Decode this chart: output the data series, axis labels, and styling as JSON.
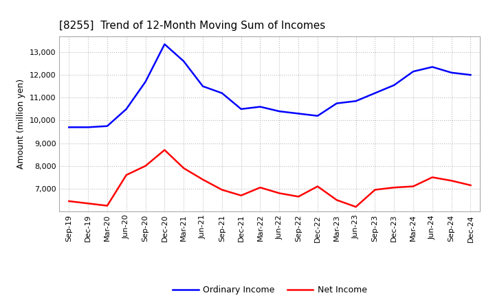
{
  "title": "[8255]  Trend of 12-Month Moving Sum of Incomes",
  "ylabel": "Amount (million yen)",
  "ylim": [
    6000,
    13700
  ],
  "yticks": [
    7000,
    8000,
    9000,
    10000,
    11000,
    12000,
    13000
  ],
  "background_color": "#ffffff",
  "grid_color": "#bbbbbb",
  "x_labels": [
    "Sep-19",
    "Dec-19",
    "Mar-20",
    "Jun-20",
    "Sep-20",
    "Dec-20",
    "Mar-21",
    "Jun-21",
    "Sep-21",
    "Dec-21",
    "Mar-22",
    "Jun-22",
    "Sep-22",
    "Dec-22",
    "Mar-23",
    "Jun-23",
    "Sep-23",
    "Dec-23",
    "Mar-24",
    "Jun-24",
    "Sep-24",
    "Dec-24"
  ],
  "ordinary_income": [
    9700,
    9700,
    9750,
    10500,
    11700,
    13350,
    12600,
    11500,
    11200,
    10500,
    10600,
    10400,
    10300,
    10200,
    10750,
    10850,
    11200,
    11550,
    12150,
    12350,
    12100,
    12000
  ],
  "net_income": [
    6450,
    6350,
    6250,
    7600,
    8000,
    8700,
    7900,
    7400,
    6950,
    6700,
    7050,
    6800,
    6650,
    7100,
    6500,
    6200,
    6950,
    7050,
    7100,
    7500,
    7350,
    7150
  ],
  "ordinary_color": "#0000ff",
  "net_color": "#ff0000",
  "line_width": 1.8,
  "title_fontsize": 11,
  "tick_fontsize": 8,
  "ylabel_fontsize": 9,
  "legend_fontsize": 9,
  "legend_labels": [
    "Ordinary Income",
    "Net Income"
  ]
}
